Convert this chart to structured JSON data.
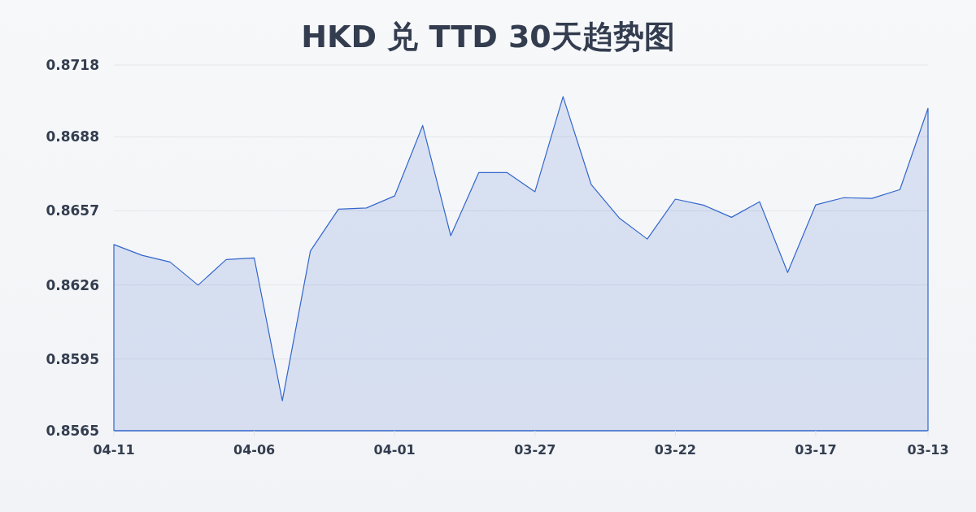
{
  "chart_data": {
    "type": "area",
    "title": "HKD 兑 TTD 30天趋势图",
    "categories": [
      "04-11",
      null,
      null,
      null,
      null,
      "04-06",
      null,
      null,
      null,
      null,
      "04-01",
      null,
      null,
      null,
      null,
      "03-27",
      null,
      null,
      null,
      null,
      "03-22",
      null,
      null,
      null,
      null,
      "03-17",
      null,
      null,
      null,
      "03-13"
    ],
    "values": [
      0.86429,
      0.86384,
      0.86356,
      0.86259,
      0.86366,
      0.86373,
      0.85775,
      0.86402,
      0.86577,
      0.86582,
      0.86632,
      0.86927,
      0.86466,
      0.8673,
      0.8673,
      0.8665,
      0.87048,
      0.86681,
      0.8654,
      0.86452,
      0.86619,
      0.86594,
      0.86543,
      0.86608,
      0.86312,
      0.86595,
      0.86625,
      0.86622,
      0.86659,
      0.86999
    ],
    "color": "#3366cc",
    "ylim": [
      0.8565,
      0.8718
    ],
    "yticks": [
      0.8565,
      0.8595,
      0.8626,
      0.8657,
      0.8688,
      0.8718
    ],
    "grid": "y"
  }
}
